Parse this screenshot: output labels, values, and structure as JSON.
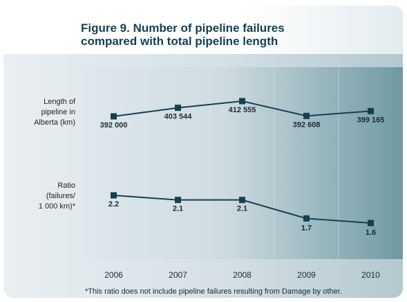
{
  "title_line1": "Figure 9. Number of pipeline failures",
  "title_line2": "compared with total pipeline length",
  "footnote": "*This ratio does not include pipeline failures resulting from Damage by other.",
  "chart_data": {
    "type": "line",
    "x": [
      "2006",
      "2007",
      "2008",
      "2009",
      "2010"
    ],
    "series": [
      {
        "name_lines": [
          "Length of",
          "pipeline in",
          "Alberta (km)"
        ],
        "values": [
          392000,
          403544,
          412555,
          392608,
          399165
        ],
        "labels": [
          "392 000",
          "403 544",
          "412 555",
          "392 608",
          "399 165"
        ]
      },
      {
        "name_lines": [
          "Ratio",
          "(failures/",
          "1 000 km)*"
        ],
        "values": [
          2.2,
          2.1,
          2.1,
          1.7,
          1.6
        ],
        "labels": [
          "2.2",
          "2.1",
          "2.1",
          "1.7",
          "1.6"
        ]
      }
    ],
    "colors": {
      "line": "#143f55",
      "band_light": "#dfe8ec",
      "band_dark": "#6f99a3"
    }
  }
}
